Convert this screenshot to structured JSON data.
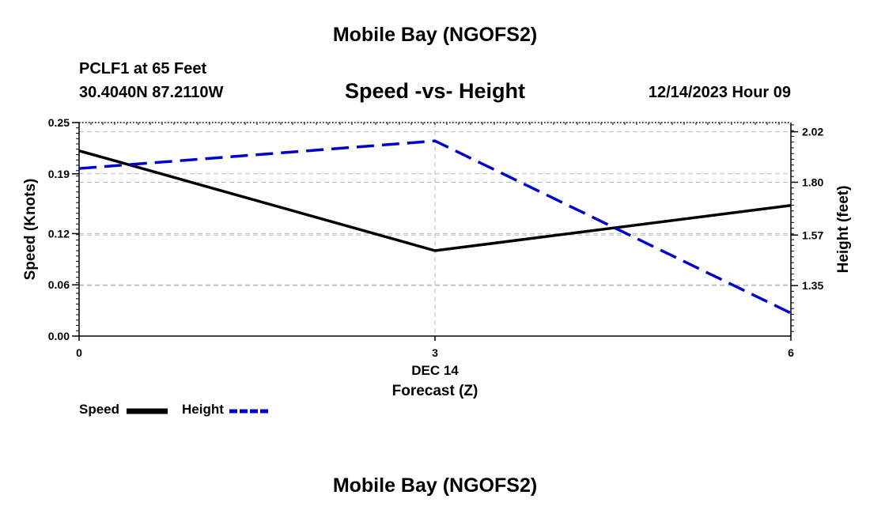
{
  "header": {
    "title_top": "Mobile Bay (NGOFS2)",
    "station": "PCLF1 at 65 Feet",
    "coords": "30.4040N  87.2110W",
    "subtitle": "Speed -vs- Height",
    "datetime": "12/14/2023 Hour 09",
    "title_bottom": "Mobile Bay (NGOFS2)"
  },
  "legend": {
    "speed_label": "Speed",
    "height_label": "Height"
  },
  "colors": {
    "speed": "#000000",
    "height": "#0000cc",
    "grid": "#bbbbbb"
  },
  "chart_data": {
    "type": "line",
    "title": "Speed -vs- Height",
    "xlabel": "Forecast (Z)",
    "x_date_label": "DEC 14",
    "ylabel": "Speed (Knots)",
    "y2label": "Height (feet)",
    "x": [
      0,
      3,
      6
    ],
    "x_tick_labels": [
      "0",
      "3",
      "6"
    ],
    "xlim": [
      0,
      6
    ],
    "ylim": [
      0,
      0.25
    ],
    "y_ticks": [
      "0.00",
      "0.06",
      "0.12",
      "0.19",
      "0.25"
    ],
    "y2lim": [
      1.13,
      2.06
    ],
    "y2_ticks": [
      "1.35",
      "1.57",
      "1.80",
      "2.02"
    ],
    "grid": true,
    "series": [
      {
        "name": "Speed",
        "axis": "left",
        "style": "solid",
        "values": [
          0.217,
          0.1,
          0.153
        ]
      },
      {
        "name": "Height",
        "axis": "right",
        "style": "dashed",
        "values": [
          1.86,
          1.98,
          1.23
        ]
      }
    ],
    "legend_position": "bottom-left"
  }
}
